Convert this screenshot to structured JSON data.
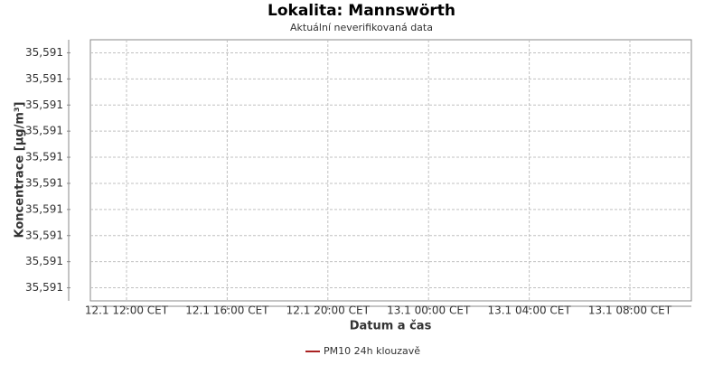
{
  "chart_data": {
    "type": "line",
    "title": "Lokalita: Mannswörth",
    "subtitle": "Aktuální neverifikovaná data",
    "y_label": "Koncentrace [µg/m³]",
    "x_label": "Datum a čas",
    "x": [],
    "series": [
      {
        "name": "PM10 24h klouzavě",
        "color": "#aa2222",
        "values": []
      }
    ],
    "xticks": [
      "12.1 12:00 CET",
      "12.1 16:00 CET",
      "12.1 20:00 CET",
      "13.1 00:00 CET",
      "13.1 04:00 CET",
      "13.1 08:00 CET"
    ],
    "ylim": [
      35.59055,
      35.59155
    ],
    "yticks": [
      {
        "value": 35.5906,
        "label": "35,591"
      },
      {
        "value": 35.5907,
        "label": "35,591"
      },
      {
        "value": 35.5908,
        "label": "35,591"
      },
      {
        "value": 35.5909,
        "label": "35,591"
      },
      {
        "value": 35.591,
        "label": "35,591"
      },
      {
        "value": 35.5911,
        "label": "35,591"
      },
      {
        "value": 35.5912,
        "label": "35,591"
      },
      {
        "value": 35.5913,
        "label": "35,591"
      },
      {
        "value": 35.5914,
        "label": "35,591"
      },
      {
        "value": 35.5915,
        "label": "35,591"
      }
    ],
    "grid": true,
    "legend": "bottom"
  }
}
